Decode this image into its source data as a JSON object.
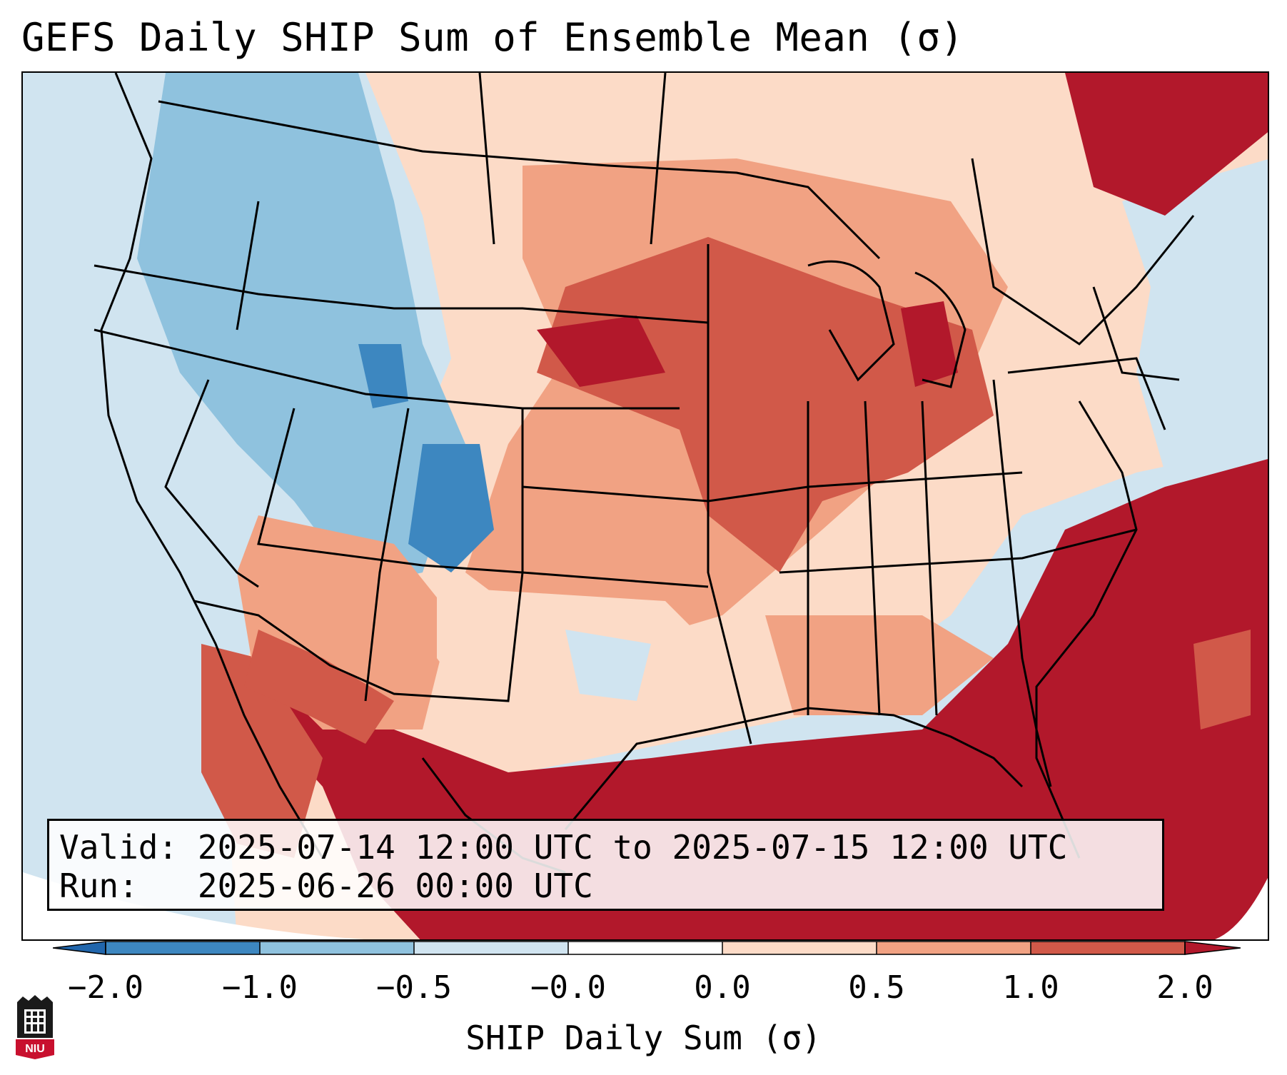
{
  "title": "GEFS Daily SHIP Sum of Ensemble Mean (σ)",
  "info": {
    "valid_label": "Valid:",
    "valid_value": "2025-07-14 12:00 UTC to 2025-07-15 12:00 UTC",
    "run_label": "Run:",
    "run_value": "2025-06-26 00:00 UTC"
  },
  "colorbar": {
    "label": "SHIP Daily Sum (σ)",
    "ticks": [
      "−2.0",
      "−1.0",
      "−0.5",
      "−0.0",
      "0.0",
      "0.5",
      "1.0",
      "2.0"
    ],
    "colors": [
      "#3d87c0",
      "#8fc2de",
      "#d0e4f0",
      "#ffffff",
      "#fcdbc7",
      "#f1a283",
      "#d15949",
      "#b2182b"
    ],
    "extend": "both"
  },
  "legend_colors": {
    "strong_negative": "#3d87c0",
    "moderate_negative": "#8fc2de",
    "weak_negative": "#d0e4f0",
    "weak_positive": "#fcdbc7",
    "moderate_positive": "#f1a283",
    "strong_positive": "#d15949",
    "extreme_positive": "#b2182b"
  },
  "logo": {
    "text": "NIU"
  }
}
